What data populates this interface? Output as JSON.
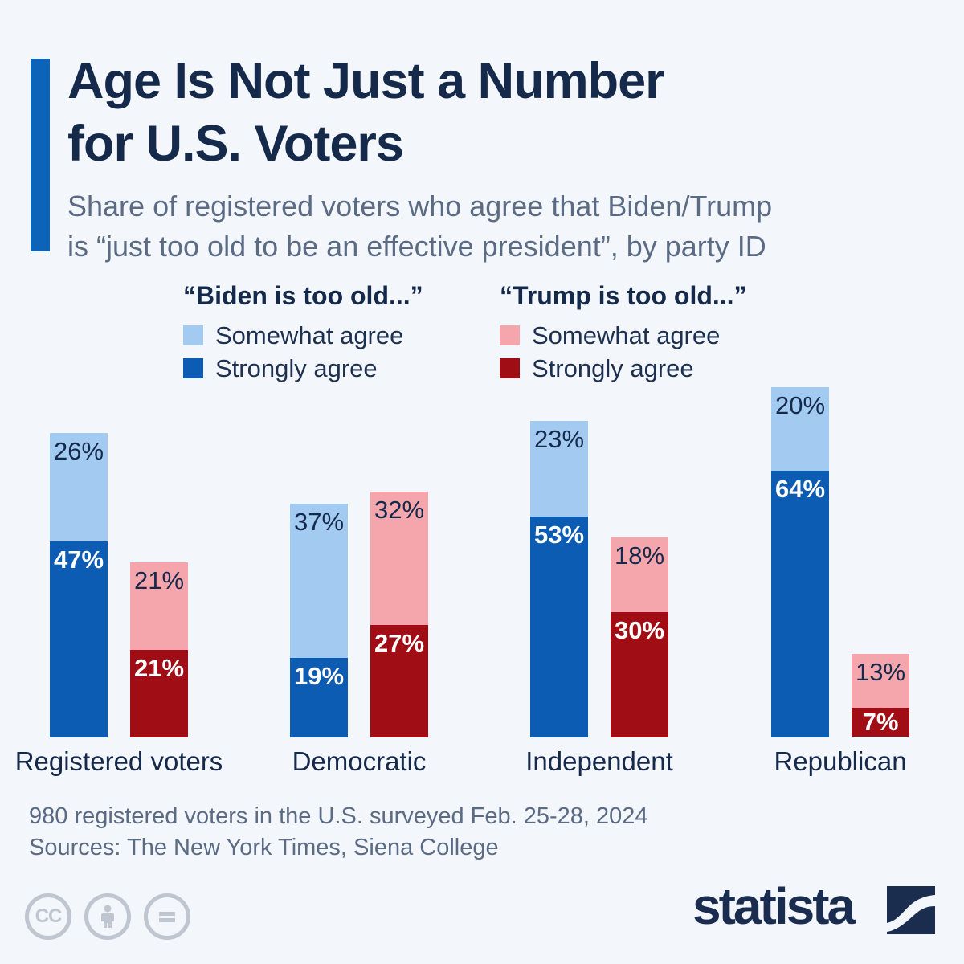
{
  "page": {
    "background": "#f3f6fb",
    "accent_color": "#0c63b8"
  },
  "header": {
    "title_line1": "Age Is Not Just a Number",
    "title_line2": "for U.S. Voters",
    "subtitle_line1": "Share of registered voters who agree that Biden/Trump",
    "subtitle_line2": "is “just too old to be an effective president”, by party ID"
  },
  "legend": {
    "biden": {
      "header": "“Biden is too old...”",
      "items": [
        {
          "label": "Somewhat agree",
          "color": "#a3cbf1"
        },
        {
          "label": "Strongly agree",
          "color": "#0b5cb2"
        }
      ]
    },
    "trump": {
      "header": "“Trump is too old...”",
      "items": [
        {
          "label": "Somewhat agree",
          "color": "#f4a6ac"
        },
        {
          "label": "Strongly agree",
          "color": "#a00d15"
        }
      ]
    }
  },
  "chart_data": {
    "type": "bar",
    "variant": "grouped-stacked",
    "unit": "%",
    "value_suffix": "%",
    "ylim": [
      0,
      84
    ],
    "grid": false,
    "categories": [
      "Registered voters",
      "Democratic",
      "Independent",
      "Republican"
    ],
    "stacks": [
      {
        "name": "Biden is too old",
        "segments": [
          {
            "name": "Strongly agree",
            "color": "#0b5cb2",
            "label_color": "#ffffff",
            "values": [
              47,
              19,
              53,
              64
            ]
          },
          {
            "name": "Somewhat agree",
            "color": "#a3cbf1",
            "label_color": "#15294b",
            "values": [
              26,
              37,
              23,
              20
            ]
          }
        ]
      },
      {
        "name": "Trump is too old",
        "segments": [
          {
            "name": "Strongly agree",
            "color": "#a00d15",
            "label_color": "#ffffff",
            "values": [
              21,
              27,
              30,
              7
            ]
          },
          {
            "name": "Somewhat agree",
            "color": "#f4a6ac",
            "label_color": "#15294b",
            "values": [
              21,
              32,
              18,
              13
            ]
          }
        ]
      }
    ]
  },
  "footer": {
    "note": "980 registered voters in the U.S. surveyed Feb. 25-28, 2024",
    "sources": "Sources: The New York Times, Siena College"
  },
  "branding": {
    "wordmark": "statista",
    "license_icons": [
      "cc-icon",
      "by-person-icon",
      "nd-equals-icon"
    ],
    "cc_label": "CC",
    "navy": "#1b2d4f"
  }
}
